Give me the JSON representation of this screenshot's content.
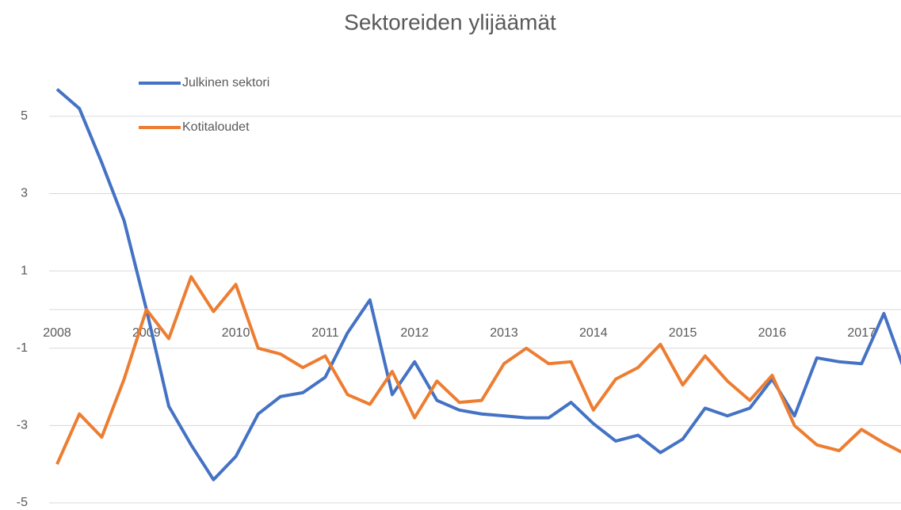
{
  "chart_data": {
    "type": "line",
    "title": "Sektoreiden ylijäämät",
    "categories": [
      "2008",
      null,
      null,
      null,
      "2009",
      null,
      null,
      null,
      "2010",
      null,
      null,
      null,
      "2011",
      null,
      null,
      null,
      "2012",
      null,
      null,
      null,
      "2013",
      null,
      null,
      null,
      "2014",
      null,
      null,
      null,
      "2015",
      null,
      null,
      null,
      "2016",
      null,
      null,
      null,
      "2017",
      null,
      null,
      null
    ],
    "series": [
      {
        "name": "Julkinen sektori",
        "color": "#4472c4",
        "values": [
          5.7,
          5.2,
          3.8,
          2.3,
          0,
          -2.5,
          -3.5,
          -4.4,
          -3.8,
          -2.7,
          -2.25,
          -2.15,
          -1.75,
          -0.6,
          0.25,
          -2.2,
          -1.35,
          -2.35,
          -2.6,
          -2.7,
          -2.75,
          -2.8,
          -2.8,
          -2.4,
          -2.95,
          -3.4,
          -3.25,
          -3.7,
          -3.35,
          -2.55,
          -2.75,
          -2.55,
          -1.8,
          -2.75,
          -1.25,
          -1.35,
          -1.4,
          -0.1,
          -1.7,
          -1.8
        ]
      },
      {
        "name": "Kotitaloudet",
        "color": "#ed7d31",
        "values": [
          -4.0,
          -2.7,
          -3.3,
          -1.8,
          0,
          -0.75,
          0.85,
          -0.05,
          0.65,
          -1.0,
          -1.15,
          -1.5,
          -1.2,
          -2.2,
          -2.45,
          -1.6,
          -2.8,
          -1.85,
          -2.4,
          -2.35,
          -1.4,
          -1.0,
          -1.4,
          -1.35,
          -2.6,
          -1.8,
          -1.5,
          -0.9,
          -1.95,
          -1.2,
          -1.85,
          -2.35,
          -1.7,
          -3.0,
          -3.5,
          -3.65,
          -3.1,
          -3.45,
          -3.75,
          -3.8
        ]
      }
    ],
    "ylim": [
      -5,
      6
    ],
    "yticks": [
      -5,
      -3,
      -1,
      1,
      3,
      5
    ],
    "grid": true,
    "legend": "top-left"
  }
}
